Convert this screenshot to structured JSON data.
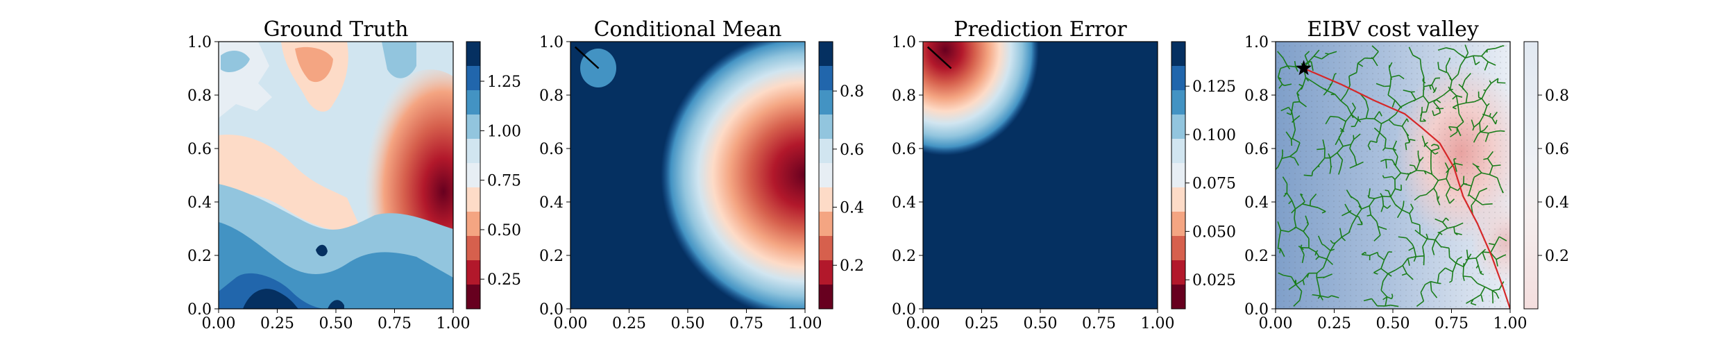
{
  "chart_data": [
    {
      "type": "heatmap",
      "title": "Ground Truth",
      "xlim": [
        0,
        1
      ],
      "ylim": [
        0,
        1
      ],
      "x_ticks": [
        "0.00",
        "0.25",
        "0.50",
        "0.75",
        "1.00"
      ],
      "y_ticks": [
        "0.0",
        "0.2",
        "0.4",
        "0.6",
        "0.8",
        "1.0"
      ],
      "colormap": [
        "#67001f",
        "#b2182b",
        "#d6604d",
        "#f4a582",
        "#fddbc7",
        "#e7eef4",
        "#d1e5f0",
        "#92c5de",
        "#4393c3",
        "#2166ac",
        "#053061"
      ],
      "colorbar": {
        "range": [
          0.1,
          1.45
        ],
        "ticks": [
          "0.25",
          "0.50",
          "0.75",
          "1.00",
          "1.25"
        ],
        "tick_values": [
          0.25,
          0.5,
          0.75,
          1.0,
          1.25
        ]
      }
    },
    {
      "type": "heatmap",
      "title": "Conditional Mean",
      "xlim": [
        0,
        1
      ],
      "ylim": [
        0,
        1
      ],
      "x_ticks": [
        "0.00",
        "0.25",
        "0.50",
        "0.75",
        "1.00"
      ],
      "y_ticks": [
        "0.0",
        "0.2",
        "0.4",
        "0.6",
        "0.8",
        "1.0"
      ],
      "colorbar": {
        "range": [
          0.05,
          0.97
        ],
        "ticks": [
          "0.2",
          "0.4",
          "0.6",
          "0.8"
        ],
        "tick_values": [
          0.2,
          0.4,
          0.6,
          0.8
        ]
      },
      "path": {
        "x": [
          0.02,
          0.12
        ],
        "y": [
          0.98,
          0.9
        ]
      }
    },
    {
      "type": "heatmap",
      "title": "Prediction Error",
      "xlim": [
        0,
        1
      ],
      "ylim": [
        0,
        1
      ],
      "x_ticks": [
        "0.00",
        "0.25",
        "0.50",
        "0.75",
        "1.00"
      ],
      "y_ticks": [
        "0.0",
        "0.2",
        "0.4",
        "0.6",
        "0.8",
        "1.0"
      ],
      "colorbar": {
        "range": [
          0.01,
          0.148
        ],
        "ticks": [
          "0.025",
          "0.050",
          "0.075",
          "0.100",
          "0.125"
        ],
        "tick_values": [
          0.025,
          0.05,
          0.075,
          0.1,
          0.125
        ]
      },
      "path": {
        "x": [
          0.02,
          0.12
        ],
        "y": [
          0.98,
          0.9
        ]
      }
    },
    {
      "type": "heatmap",
      "title": "EIBV cost valley",
      "xlim": [
        0,
        1
      ],
      "ylim": [
        0,
        1
      ],
      "x_ticks": [
        "0.00",
        "0.25",
        "0.50",
        "0.75",
        "1.00"
      ],
      "y_ticks": [
        "0.0",
        "0.2",
        "0.4",
        "0.6",
        "0.8",
        "1.0"
      ],
      "colorbar": {
        "range": [
          0.0,
          1.0
        ],
        "ticks": [
          "0.2",
          "0.4",
          "0.6",
          "0.8"
        ],
        "tick_values": [
          0.2,
          0.4,
          0.6,
          0.8
        ]
      },
      "start_marker": {
        "x": 0.12,
        "y": 0.9
      },
      "planned_path": {
        "x": [
          0.12,
          0.28,
          0.42,
          0.55,
          0.62,
          0.7,
          0.76,
          0.8,
          0.86,
          0.92,
          0.97,
          1.0
        ],
        "y": [
          0.9,
          0.84,
          0.78,
          0.73,
          0.68,
          0.62,
          0.53,
          0.42,
          0.32,
          0.2,
          0.08,
          0.0
        ]
      },
      "tree_color": "#1a7d1a",
      "path_color": "#d62728"
    }
  ]
}
